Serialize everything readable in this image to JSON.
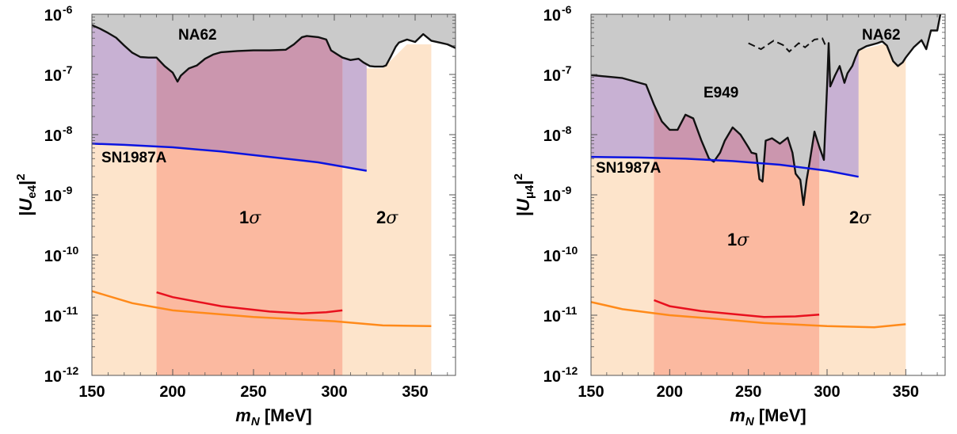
{
  "colors": {
    "excluded_gray": "#cacaca",
    "sn_purple": "#c8b1d3",
    "band_1sigma": "#fbb9a0",
    "band_2sigma": "#fde4cb",
    "overlap_1sigma_excluded": "#cb96ae",
    "sn_line": "#0a14e0",
    "orange_line": "#ff8a1a",
    "red_line": "#e8101e",
    "boundary": "#111111"
  },
  "chart_data": [
    {
      "type": "area",
      "xlabel": "m_N [MeV]",
      "ylabel": "|U_e4|^2",
      "xlim": [
        150,
        375
      ],
      "ylim_log10": [
        -12,
        -6
      ],
      "log_y": true,
      "x_ticks": [
        "150",
        "200",
        "250",
        "300",
        "350"
      ],
      "y_ticks": [
        {
          "base": "10",
          "exp": "-12",
          "v": -12
        },
        {
          "base": "10",
          "exp": "-11",
          "v": -11
        },
        {
          "base": "10",
          "exp": "-10",
          "v": -10
        },
        {
          "base": "10",
          "exp": "-9",
          "v": -9
        },
        {
          "base": "10",
          "exp": "-8",
          "v": -8
        },
        {
          "base": "10",
          "exp": "-7",
          "v": -7
        },
        {
          "base": "10",
          "exp": "-6",
          "v": -6
        }
      ],
      "annotations": {
        "excluded_label": "NA62",
        "sn_label": "SN1987A",
        "band1_label": "1",
        "band2_label": "2",
        "sigma": "σ"
      },
      "band_1sigma_x": [
        190,
        305
      ],
      "band_2sigma_x": [
        150,
        360
      ],
      "sn_region_x": [
        150,
        320
      ],
      "excluded_boundary": [
        [
          150,
          -6.18
        ],
        [
          155,
          -6.24
        ],
        [
          160,
          -6.31
        ],
        [
          165,
          -6.39
        ],
        [
          170,
          -6.52
        ],
        [
          175,
          -6.64
        ],
        [
          180,
          -6.71
        ],
        [
          185,
          -6.72
        ],
        [
          190,
          -6.72
        ],
        [
          195,
          -6.86
        ],
        [
          200,
          -6.97
        ],
        [
          203,
          -7.12
        ],
        [
          205,
          -7.02
        ],
        [
          210,
          -6.9
        ],
        [
          215,
          -6.85
        ],
        [
          220,
          -6.74
        ],
        [
          225,
          -6.67
        ],
        [
          230,
          -6.63
        ],
        [
          240,
          -6.61
        ],
        [
          250,
          -6.6
        ],
        [
          260,
          -6.6
        ],
        [
          270,
          -6.59
        ],
        [
          275,
          -6.5
        ],
        [
          280,
          -6.38
        ],
        [
          283,
          -6.36
        ],
        [
          290,
          -6.38
        ],
        [
          295,
          -6.42
        ],
        [
          298,
          -6.6
        ],
        [
          302,
          -6.67
        ],
        [
          305,
          -6.72
        ],
        [
          310,
          -6.76
        ],
        [
          315,
          -6.74
        ],
        [
          318,
          -6.8
        ],
        [
          322,
          -6.86
        ],
        [
          325,
          -6.87
        ],
        [
          330,
          -6.87
        ],
        [
          332,
          -6.85
        ],
        [
          335,
          -6.7
        ],
        [
          338,
          -6.54
        ],
        [
          340,
          -6.47
        ],
        [
          345,
          -6.42
        ],
        [
          350,
          -6.46
        ],
        [
          355,
          -6.33
        ],
        [
          360,
          -6.44
        ],
        [
          365,
          -6.47
        ],
        [
          370,
          -6.5
        ],
        [
          375,
          -6.56
        ]
      ],
      "band_2sigma_top": [
        [
          150,
          -6.2
        ],
        [
          190,
          -6.2
        ],
        [
          305,
          -6.9
        ],
        [
          320,
          -6.9
        ],
        [
          330,
          -6.9
        ],
        [
          345,
          -6.5
        ],
        [
          360,
          -6.5
        ]
      ],
      "sn_line": [
        [
          150,
          -8.15
        ],
        [
          170,
          -8.17
        ],
        [
          200,
          -8.21
        ],
        [
          230,
          -8.28
        ],
        [
          260,
          -8.37
        ],
        [
          290,
          -8.46
        ],
        [
          320,
          -8.6
        ]
      ],
      "orange_line": [
        [
          150,
          -10.6
        ],
        [
          175,
          -10.8
        ],
        [
          200,
          -10.92
        ],
        [
          250,
          -11.03
        ],
        [
          300,
          -11.1
        ],
        [
          330,
          -11.17
        ],
        [
          360,
          -11.18
        ]
      ],
      "red_line": [
        [
          190,
          -10.62
        ],
        [
          200,
          -10.7
        ],
        [
          230,
          -10.85
        ],
        [
          260,
          -10.94
        ],
        [
          280,
          -10.97
        ],
        [
          295,
          -10.95
        ],
        [
          305,
          -10.92
        ]
      ]
    },
    {
      "type": "area",
      "xlabel": "m_N [MeV]",
      "ylabel": "|U_μ4|^2",
      "xlim": [
        150,
        375
      ],
      "ylim_log10": [
        -12,
        -6
      ],
      "log_y": true,
      "x_ticks": [
        "150",
        "200",
        "250",
        "300",
        "350"
      ],
      "y_ticks": [
        {
          "base": "10",
          "exp": "-12",
          "v": -12
        },
        {
          "base": "10",
          "exp": "-11",
          "v": -11
        },
        {
          "base": "10",
          "exp": "-10",
          "v": -10
        },
        {
          "base": "10",
          "exp": "-9",
          "v": -9
        },
        {
          "base": "10",
          "exp": "-8",
          "v": -8
        },
        {
          "base": "10",
          "exp": "-7",
          "v": -7
        },
        {
          "base": "10",
          "exp": "-6",
          "v": -6
        }
      ],
      "annotations": {
        "excluded_label": "NA62",
        "e949_label": "E949",
        "sn_label": "SN1987A",
        "band1_label": "1",
        "band2_label": "2",
        "sigma": "σ"
      },
      "band_1sigma_x": [
        190,
        295
      ],
      "band_2sigma_x": [
        150,
        350
      ],
      "sn_region_x": [
        150,
        320
      ],
      "excluded_boundary": [
        [
          150,
          -7.01
        ],
        [
          170,
          -7.06
        ],
        [
          185,
          -7.17
        ],
        [
          190,
          -7.5
        ],
        [
          195,
          -7.78
        ],
        [
          200,
          -7.92
        ],
        [
          205,
          -7.92
        ],
        [
          210,
          -7.67
        ],
        [
          215,
          -7.73
        ],
        [
          220,
          -8.09
        ],
        [
          225,
          -8.4
        ],
        [
          228,
          -8.45
        ],
        [
          232,
          -8.3
        ],
        [
          235,
          -8.1
        ],
        [
          240,
          -7.88
        ],
        [
          245,
          -8.0
        ],
        [
          250,
          -8.21
        ],
        [
          252,
          -8.3
        ],
        [
          255,
          -8.32
        ],
        [
          257,
          -8.74
        ],
        [
          259,
          -8.78
        ],
        [
          261,
          -8.1
        ],
        [
          265,
          -8.06
        ],
        [
          270,
          -8.15
        ],
        [
          275,
          -8.05
        ],
        [
          278,
          -8.3
        ],
        [
          280,
          -8.65
        ],
        [
          283,
          -8.75
        ],
        [
          285,
          -9.17
        ],
        [
          287,
          -8.75
        ],
        [
          289,
          -8.45
        ],
        [
          292,
          -7.95
        ],
        [
          295,
          -8.2
        ],
        [
          298,
          -8.42
        ],
        [
          300,
          -7.2
        ],
        [
          301,
          -6.48
        ],
        [
          302,
          -7.2
        ],
        [
          305,
          -7.02
        ],
        [
          308,
          -6.86
        ],
        [
          311,
          -7.14
        ],
        [
          313,
          -6.98
        ],
        [
          316,
          -6.86
        ],
        [
          318,
          -6.72
        ],
        [
          320,
          -6.6
        ],
        [
          325,
          -6.53
        ],
        [
          332,
          -6.48
        ],
        [
          335,
          -6.45
        ],
        [
          338,
          -6.52
        ],
        [
          342,
          -6.78
        ],
        [
          345,
          -6.86
        ],
        [
          348,
          -6.8
        ],
        [
          350,
          -6.72
        ],
        [
          355,
          -6.55
        ],
        [
          360,
          -6.43
        ],
        [
          363,
          -6.58
        ],
        [
          366,
          -6.27
        ],
        [
          370,
          -6.27
        ],
        [
          372,
          -6.0
        ]
      ],
      "e949_dashed": [
        [
          250,
          -6.48
        ],
        [
          258,
          -6.58
        ],
        [
          266,
          -6.44
        ],
        [
          272,
          -6.51
        ],
        [
          276,
          -6.62
        ],
        [
          282,
          -6.48
        ],
        [
          286,
          -6.55
        ],
        [
          292,
          -6.42
        ],
        [
          297,
          -6.4
        ],
        [
          299,
          -6.52
        ]
      ],
      "band_2sigma_top": [
        [
          150,
          -6.2
        ],
        [
          190,
          -6.2
        ],
        [
          295,
          -6.9
        ],
        [
          310,
          -6.9
        ],
        [
          320,
          -6.6
        ],
        [
          335,
          -6.5
        ],
        [
          350,
          -6.5
        ]
      ],
      "sn_line": [
        [
          150,
          -8.37
        ],
        [
          180,
          -8.38
        ],
        [
          210,
          -8.4
        ],
        [
          240,
          -8.44
        ],
        [
          270,
          -8.5
        ],
        [
          300,
          -8.6
        ],
        [
          320,
          -8.7
        ]
      ],
      "orange_line": [
        [
          150,
          -10.78
        ],
        [
          170,
          -10.9
        ],
        [
          200,
          -11.0
        ],
        [
          230,
          -11.06
        ],
        [
          260,
          -11.13
        ],
        [
          300,
          -11.18
        ],
        [
          330,
          -11.2
        ],
        [
          350,
          -11.15
        ]
      ],
      "red_line": [
        [
          190,
          -10.75
        ],
        [
          200,
          -10.85
        ],
        [
          220,
          -10.93
        ],
        [
          240,
          -10.98
        ],
        [
          260,
          -11.03
        ],
        [
          280,
          -11.02
        ],
        [
          295,
          -10.99
        ]
      ]
    }
  ]
}
